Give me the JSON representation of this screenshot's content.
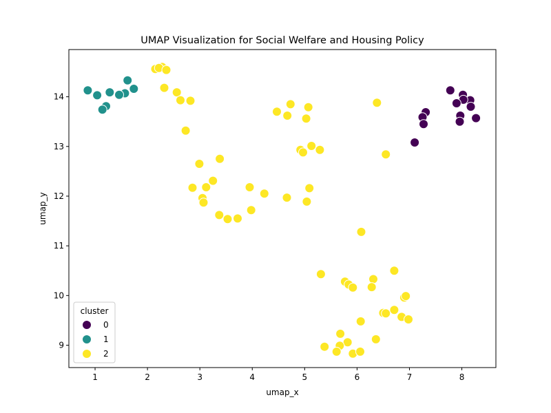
{
  "chart_data": {
    "type": "scatter",
    "title": "UMAP Visualization for Social Welfare and Housing Policy",
    "xlabel": "umap_x",
    "ylabel": "umap_y",
    "xlim": [
      0.5,
      8.65
    ],
    "ylim": [
      8.55,
      14.95
    ],
    "xticks": [
      1,
      2,
      3,
      4,
      5,
      6,
      7,
      8
    ],
    "yticks": [
      9,
      10,
      11,
      12,
      13,
      14
    ],
    "grid": false,
    "legend": {
      "title": "cluster",
      "placement": "lower-left"
    },
    "series": [
      {
        "name": "0",
        "color": "#440154",
        "points": [
          [
            7.78,
            14.13
          ],
          [
            8.02,
            14.04
          ],
          [
            8.16,
            13.93
          ],
          [
            8.03,
            13.94
          ],
          [
            7.9,
            13.87
          ],
          [
            8.17,
            13.8
          ],
          [
            7.31,
            13.69
          ],
          [
            7.97,
            13.62
          ],
          [
            7.25,
            13.59
          ],
          [
            8.27,
            13.57
          ],
          [
            7.96,
            13.5
          ],
          [
            7.27,
            13.45
          ],
          [
            7.1,
            13.08
          ]
        ]
      },
      {
        "name": "1",
        "color": "#21918c",
        "points": [
          [
            1.62,
            14.33
          ],
          [
            1.74,
            14.16
          ],
          [
            0.86,
            14.13
          ],
          [
            1.28,
            14.09
          ],
          [
            1.57,
            14.07
          ],
          [
            1.46,
            14.04
          ],
          [
            1.04,
            14.03
          ],
          [
            1.21,
            13.81
          ],
          [
            1.14,
            13.74
          ]
        ]
      },
      {
        "name": "2",
        "color": "#fde725",
        "points": [
          [
            2.28,
            14.6
          ],
          [
            2.15,
            14.56
          ],
          [
            2.22,
            14.58
          ],
          [
            2.36,
            14.54
          ],
          [
            2.32,
            14.18
          ],
          [
            2.56,
            14.09
          ],
          [
            2.63,
            13.93
          ],
          [
            2.82,
            13.92
          ],
          [
            2.73,
            13.32
          ],
          [
            4.73,
            13.85
          ],
          [
            5.07,
            13.79
          ],
          [
            4.47,
            13.7
          ],
          [
            4.67,
            13.62
          ],
          [
            5.03,
            13.56
          ],
          [
            6.38,
            13.88
          ],
          [
            5.13,
            13.01
          ],
          [
            4.92,
            12.93
          ],
          [
            4.97,
            12.88
          ],
          [
            5.29,
            12.93
          ],
          [
            6.55,
            12.84
          ],
          [
            2.99,
            12.65
          ],
          [
            3.38,
            12.75
          ],
          [
            3.25,
            12.31
          ],
          [
            2.86,
            12.17
          ],
          [
            3.12,
            12.18
          ],
          [
            3.05,
            11.96
          ],
          [
            3.07,
            11.87
          ],
          [
            3.95,
            12.18
          ],
          [
            4.23,
            12.05
          ],
          [
            4.66,
            11.97
          ],
          [
            5.09,
            12.16
          ],
          [
            5.04,
            11.89
          ],
          [
            3.98,
            11.72
          ],
          [
            3.37,
            11.62
          ],
          [
            3.53,
            11.54
          ],
          [
            3.72,
            11.55
          ],
          [
            6.08,
            11.28
          ],
          [
            5.31,
            10.43
          ],
          [
            6.71,
            10.5
          ],
          [
            5.77,
            10.28
          ],
          [
            5.84,
            10.22
          ],
          [
            5.92,
            10.16
          ],
          [
            6.31,
            10.33
          ],
          [
            6.28,
            10.17
          ],
          [
            6.9,
            9.96
          ],
          [
            6.93,
            9.99
          ],
          [
            6.5,
            9.65
          ],
          [
            6.55,
            9.64
          ],
          [
            6.71,
            9.71
          ],
          [
            6.85,
            9.57
          ],
          [
            6.98,
            9.52
          ],
          [
            6.07,
            9.48
          ],
          [
            5.68,
            9.23
          ],
          [
            5.82,
            9.06
          ],
          [
            5.67,
            8.99
          ],
          [
            6.36,
            9.12
          ],
          [
            5.38,
            8.97
          ],
          [
            5.61,
            8.87
          ],
          [
            5.92,
            8.83
          ],
          [
            6.06,
            8.87
          ]
        ]
      }
    ]
  }
}
